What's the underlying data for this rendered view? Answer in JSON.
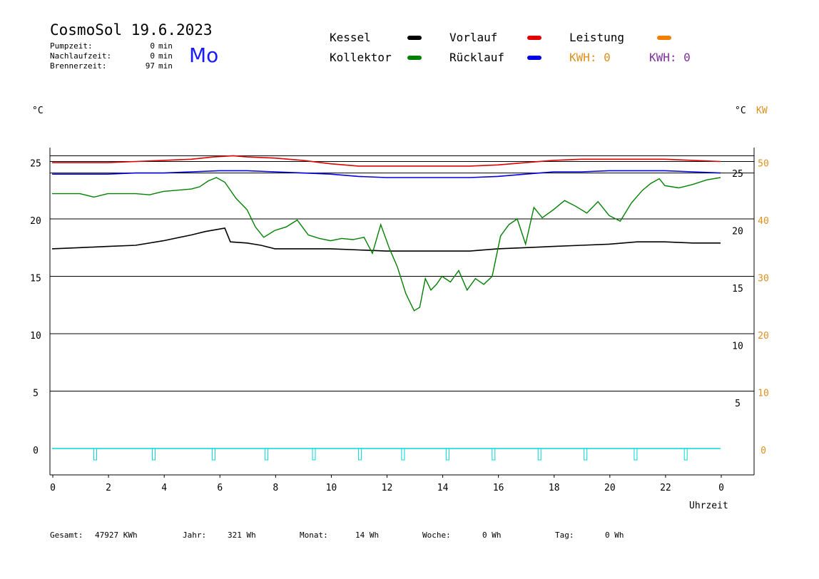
{
  "header": {
    "title": "CosmoSol 19.6.2023",
    "day": "Mo",
    "stats": [
      {
        "label": "Pumpzeit:",
        "value": "0",
        "unit": "min"
      },
      {
        "label": "Nachlaufzeit:",
        "value": "0",
        "unit": "min"
      },
      {
        "label": "Brennerzeit:",
        "value": "97",
        "unit": "min"
      }
    ]
  },
  "legend": {
    "kessel": {
      "label": "Kessel",
      "color": "#000000"
    },
    "vorlauf": {
      "label": "Vorlauf",
      "color": "#e00000"
    },
    "leistung": {
      "label": "Leistung",
      "color": "#f08000"
    },
    "kollektor": {
      "label": "Kollektor",
      "color": "#008000"
    },
    "ruecklauf": {
      "label": "Rücklauf",
      "color": "#0000e0"
    },
    "kwh1": {
      "label": "KWH: 0",
      "color": "#e09020"
    },
    "kwh2": {
      "label": "KWH: 0",
      "color": "#8030a0"
    }
  },
  "axes": {
    "left_unit": "°C",
    "right_unit_c": "°C",
    "right_unit_kw": "KW",
    "x_title": "Uhrzeit"
  },
  "footer": {
    "gesamt_label": "Gesamt:",
    "gesamt_value": "47927 KWh",
    "jahr_label": "Jahr:",
    "jahr_value": "321 Wh",
    "monat_label": "Monat:",
    "monat_value": "14 Wh",
    "woche_label": "Woche:",
    "woche_value": "0 Wh",
    "tag_label": "Tag:",
    "tag_value": "0 Wh"
  },
  "chart_data": {
    "type": "line",
    "x_unit": "hours",
    "xlim": [
      0,
      24
    ],
    "ylim_left": [
      -2.5,
      26.5
    ],
    "x_ticks": [
      "0",
      "2",
      "4",
      "6",
      "8",
      "10",
      "12",
      "14",
      "16",
      "18",
      "20",
      "22",
      "0"
    ],
    "y_ticks_left": [
      "0",
      "5",
      "10",
      "15",
      "20",
      "25"
    ],
    "y_ticks_right_c": [
      "5",
      "10",
      "15",
      "20",
      "25"
    ],
    "y_ticks_right_kw": [
      "0",
      "10",
      "20",
      "30",
      "40",
      "50"
    ],
    "series": [
      {
        "name": "Vorlauf",
        "color": "#e00000",
        "x": [
          0,
          1,
          2,
          3,
          4,
          5,
          5.8,
          6.5,
          7,
          8,
          9,
          10,
          11,
          12,
          13,
          14,
          15,
          16,
          17,
          18,
          19,
          20,
          21,
          22,
          23,
          24
        ],
        "y": [
          24.9,
          24.9,
          24.9,
          25.0,
          25.1,
          25.2,
          25.4,
          25.5,
          25.4,
          25.3,
          25.1,
          24.8,
          24.6,
          24.6,
          24.6,
          24.6,
          24.6,
          24.7,
          24.9,
          25.1,
          25.2,
          25.2,
          25.2,
          25.2,
          25.1,
          25.0
        ]
      },
      {
        "name": "Rücklauf",
        "color": "#0000e0",
        "x": [
          0,
          1,
          2,
          3,
          4,
          5,
          6,
          7,
          8,
          9,
          10,
          11,
          12,
          13,
          14,
          15,
          16,
          17,
          18,
          19,
          20,
          21,
          22,
          23,
          24
        ],
        "y": [
          23.9,
          23.9,
          23.9,
          24.0,
          24.0,
          24.1,
          24.2,
          24.2,
          24.1,
          24.0,
          23.9,
          23.7,
          23.6,
          23.6,
          23.6,
          23.6,
          23.7,
          23.9,
          24.1,
          24.1,
          24.2,
          24.2,
          24.2,
          24.1,
          24.0
        ]
      },
      {
        "name": "Kessel",
        "color": "#000000",
        "x": [
          0,
          1,
          2,
          3,
          4,
          5,
          5.5,
          6.2,
          6.4,
          7,
          7.5,
          8,
          9,
          10,
          11,
          12,
          13,
          14,
          15,
          16,
          17,
          18,
          19,
          20,
          21,
          22,
          23,
          24
        ],
        "y": [
          17.4,
          17.5,
          17.6,
          17.7,
          18.1,
          18.6,
          18.9,
          19.2,
          18.0,
          17.9,
          17.7,
          17.4,
          17.4,
          17.4,
          17.3,
          17.2,
          17.2,
          17.2,
          17.2,
          17.4,
          17.5,
          17.6,
          17.7,
          17.8,
          18.0,
          18.0,
          17.9,
          17.9
        ]
      },
      {
        "name": "Kollektor",
        "color": "#008000",
        "x": [
          0,
          0.5,
          1,
          1.5,
          2,
          3,
          3.5,
          4,
          5,
          5.3,
          5.6,
          5.9,
          6.2,
          6.6,
          7,
          7.3,
          7.6,
          8,
          8.4,
          8.8,
          9.2,
          9.6,
          10,
          10.4,
          10.8,
          11.2,
          11.5,
          11.8,
          12.1,
          12.4,
          12.7,
          13,
          13.2,
          13.4,
          13.6,
          13.8,
          14,
          14.3,
          14.6,
          14.9,
          15.2,
          15.5,
          15.8,
          16.1,
          16.4,
          16.7,
          17,
          17.3,
          17.6,
          18,
          18.4,
          18.8,
          19.2,
          19.6,
          20,
          20.4,
          20.8,
          21.2,
          21.5,
          21.8,
          22,
          22.5,
          23,
          23.5,
          24
        ],
        "y": [
          22.2,
          22.2,
          22.2,
          21.9,
          22.2,
          22.2,
          22.1,
          22.4,
          22.6,
          22.8,
          23.3,
          23.6,
          23.2,
          21.8,
          20.8,
          19.3,
          18.4,
          19.0,
          19.3,
          19.9,
          18.6,
          18.3,
          18.1,
          18.3,
          18.2,
          18.4,
          17.0,
          19.5,
          17.5,
          15.8,
          13.5,
          12.0,
          12.3,
          14.8,
          13.8,
          14.3,
          15.0,
          14.5,
          15.5,
          13.8,
          14.8,
          14.3,
          15.0,
          18.5,
          19.5,
          20.0,
          17.8,
          21.0,
          20.1,
          20.8,
          21.6,
          21.1,
          20.5,
          21.5,
          20.3,
          19.8,
          21.4,
          22.5,
          23.1,
          23.5,
          22.9,
          22.7,
          23.0,
          23.4,
          23.6
        ]
      },
      {
        "name": "Leistung",
        "color": "#00d8d8",
        "x": [
          0,
          24
        ],
        "y": [
          0,
          0
        ]
      }
    ],
    "pulses_x": [
      1.55,
      3.65,
      5.8,
      7.7,
      9.4,
      11.05,
      12.6,
      14.2,
      15.85,
      17.5,
      19.15,
      20.95,
      22.75
    ],
    "grid": true
  }
}
